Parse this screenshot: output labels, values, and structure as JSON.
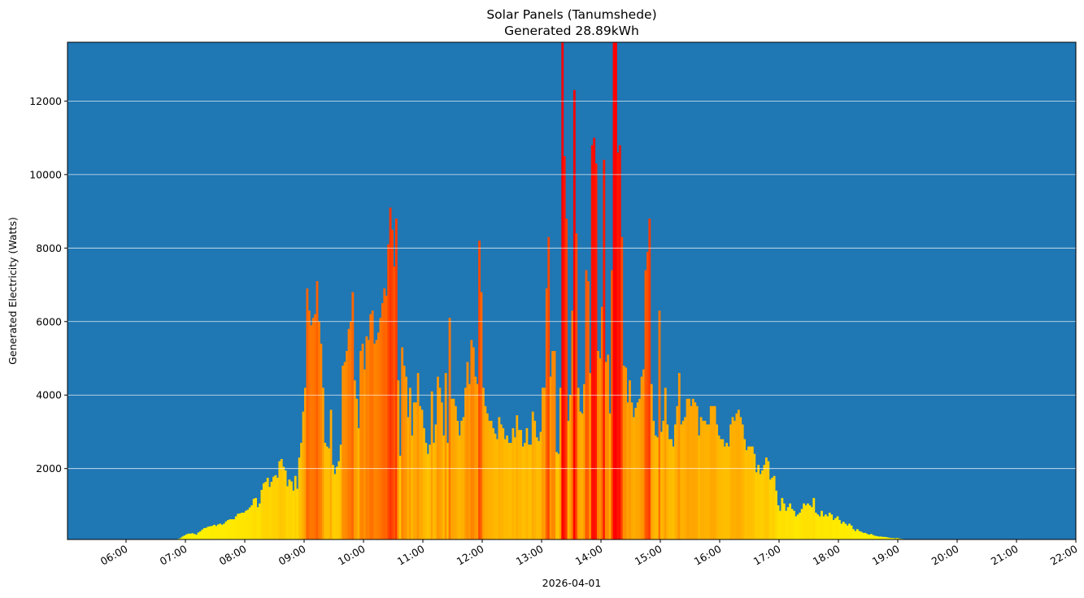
{
  "chart_data": {
    "type": "bar",
    "title": "Solar Panels (Tanumshede)",
    "subtitle": "Generated 28.89kWh",
    "xlabel": "2026-04-01",
    "ylabel": "Generated Electricity (Watts)",
    "ylim": [
      70,
      13600
    ],
    "xlim": [
      "05:01",
      "22:00"
    ],
    "grid": "horizontal",
    "background_color": "#1f77b4",
    "gridline_color": "#ffffff",
    "colormap": "autumn_r (yellow low → red high)",
    "yticks": [
      2000,
      4000,
      6000,
      8000,
      10000,
      12000
    ],
    "xticks": [
      "06:00",
      "07:00",
      "08:00",
      "09:00",
      "10:00",
      "11:00",
      "12:00",
      "13:00",
      "14:00",
      "15:00",
      "16:00",
      "17:00",
      "18:00",
      "19:00",
      "20:00",
      "21:00",
      "22:00"
    ],
    "interval_minutes": 2,
    "x_start": "06:20",
    "values": [
      70,
      70,
      70,
      70,
      70,
      70,
      70,
      70,
      70,
      70,
      70,
      70,
      75,
      75,
      80,
      80,
      90,
      110,
      150,
      180,
      210,
      230,
      230,
      240,
      220,
      200,
      260,
      290,
      340,
      380,
      390,
      420,
      430,
      440,
      470,
      440,
      480,
      500,
      470,
      500,
      560,
      600,
      620,
      620,
      620,
      700,
      770,
      780,
      800,
      800,
      850,
      880,
      940,
      1000,
      1180,
      1200,
      950,
      1050,
      1420,
      1600,
      1640,
      1750,
      1500,
      1640,
      1780,
      1820,
      1750,
      2200,
      2260,
      2050,
      1950,
      1520,
      1700,
      1650,
      1400,
      1800,
      1450,
      2300,
      2700,
      3550,
      4200,
      6900,
      6300,
      5900,
      6100,
      6200,
      7100,
      6000,
      5400,
      4200,
      2700,
      2600,
      2550,
      3600,
      2100,
      1850,
      2050,
      2200,
      2650,
      4800,
      4900,
      5200,
      5800,
      6000,
      6800,
      4400,
      3900,
      3100,
      5200,
      5400,
      4700,
      5600,
      5500,
      6200,
      6300,
      5400,
      5500,
      5700,
      6100,
      6500,
      6900,
      6700,
      8100,
      9100,
      8500,
      7500,
      8800,
      4400,
      2350,
      5300,
      4800,
      4500,
      3400,
      4200,
      2900,
      3800,
      3800,
      4600,
      3700,
      3600,
      3100,
      2700,
      2400,
      2650,
      4100,
      2700,
      3200,
      4500,
      4200,
      3800,
      2900,
      4600,
      2700,
      6100,
      3900,
      3900,
      3700,
      3300,
      2900,
      3300,
      3400,
      4200,
      4900,
      4300,
      5500,
      5300,
      4500,
      4300,
      8200,
      6800,
      4200,
      3700,
      3500,
      3300,
      3300,
      3100,
      2950,
      2800,
      3400,
      3200,
      3100,
      2800,
      2900,
      2700,
      2700,
      3100,
      2850,
      3450,
      3050,
      3050,
      2600,
      2700,
      3100,
      2650,
      2650,
      3550,
      3300,
      2850,
      2750,
      3000,
      4200,
      4200,
      6900,
      8300,
      4500,
      5200,
      5200,
      2450,
      2400,
      4200,
      14000,
      10500,
      8800,
      3300,
      4000,
      6300,
      12300,
      8400,
      4200,
      3550,
      3500,
      4300,
      7400,
      7100,
      4600,
      10800,
      11000,
      10300,
      5200,
      5000,
      6400,
      10400,
      4900,
      5100,
      3500,
      7400,
      13900,
      14000,
      10600,
      10800,
      8300,
      4800,
      4750,
      3800,
      4400,
      3800,
      3400,
      3650,
      3800,
      3900,
      4500,
      4700,
      7400,
      7900,
      8800,
      4300,
      3300,
      2900,
      2850,
      6300,
      3000,
      3300,
      4200,
      3200,
      2800,
      2800,
      2600,
      3200,
      3700,
      4600,
      3200,
      3300,
      3400,
      3900,
      3900,
      3700,
      3900,
      3800,
      3700,
      2900,
      3400,
      3300,
      3300,
      3200,
      3200,
      3700,
      3700,
      3700,
      3200,
      2900,
      2800,
      2800,
      2600,
      2700,
      2600,
      3200,
      3400,
      3300,
      3500,
      3600,
      3400,
      3200,
      2800,
      2500,
      2600,
      2600,
      2600,
      2400,
      1900,
      2100,
      1850,
      1950,
      2100,
      2300,
      2200,
      1700,
      1750,
      1800,
      1400,
      1000,
      850,
      1200,
      1050,
      850,
      950,
      1050,
      900,
      850,
      700,
      750,
      800,
      900,
      1050,
      1000,
      1050,
      1000,
      950,
      1200,
      800,
      750,
      700,
      850,
      700,
      750,
      700,
      800,
      750,
      600,
      650,
      700,
      600,
      500,
      550,
      500,
      450,
      500,
      450,
      350,
      300,
      350,
      300,
      280,
      250,
      250,
      220,
      200,
      220,
      190,
      170,
      160,
      150,
      150,
      140,
      140,
      130,
      120,
      110,
      110,
      100,
      110,
      100,
      90,
      85,
      80,
      80,
      80,
      80,
      75,
      75,
      70
    ]
  }
}
